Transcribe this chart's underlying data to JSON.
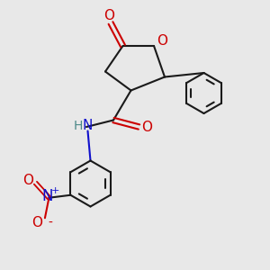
{
  "bg_color": "#e8e8e8",
  "bond_color": "#1a1a1a",
  "o_color": "#cc0000",
  "n_color": "#1010cc",
  "h_color": "#4a8888",
  "bond_width": 1.5,
  "fig_size": [
    3.0,
    3.0
  ],
  "dpi": 100,
  "xlim": [
    0,
    10
  ],
  "ylim": [
    0,
    10
  ]
}
